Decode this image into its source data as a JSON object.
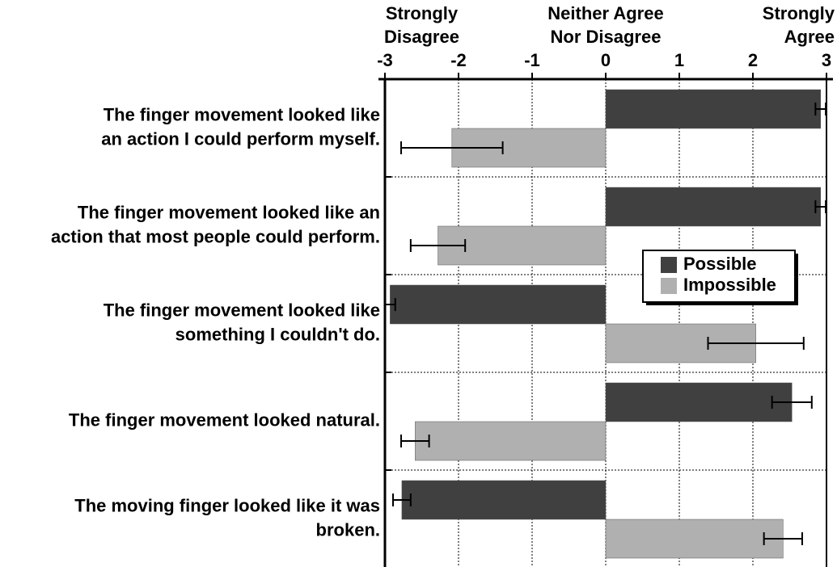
{
  "chart_data": {
    "type": "hbar",
    "annotations": [
      {
        "lines": [
          "Strongly",
          "Disagree"
        ],
        "at": -2.5,
        "align": "middle"
      },
      {
        "lines": [
          "Neither Agree",
          "Nor Disagree"
        ],
        "at": 0,
        "align": "middle"
      },
      {
        "lines": [
          "Strongly",
          "Agree"
        ],
        "at": 3,
        "align": "end"
      }
    ],
    "categories": [
      [
        "The finger movement looked like",
        "an action I could perform myself."
      ],
      [
        "The finger movement looked like an",
        "action that most people could perform."
      ],
      [
        "The finger movement looked like",
        "something I couldn't do."
      ],
      [
        "The finger movement looked natural."
      ],
      [
        "The moving finger looked like it was",
        "broken."
      ]
    ],
    "series": [
      {
        "name": "Possible",
        "color": "#404040",
        "values": [
          2.92,
          2.92,
          -2.93,
          2.53,
          -2.77
        ],
        "errors": [
          0.07,
          0.07,
          0.07,
          0.27,
          0.12
        ]
      },
      {
        "name": "Impossible",
        "color": "#b0b0b0",
        "values": [
          -2.09,
          -2.28,
          2.04,
          -2.59,
          2.41
        ],
        "errors": [
          0.69,
          0.37,
          0.65,
          0.19,
          0.26
        ]
      }
    ],
    "xlim": [
      -3,
      3
    ],
    "xticks": [
      -3,
      -2,
      -1,
      0,
      1,
      2,
      3
    ],
    "grid": true,
    "legend": "right"
  }
}
